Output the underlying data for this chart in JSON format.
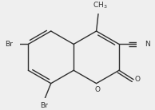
{
  "bg_color": "#efefef",
  "line_color": "#303030",
  "text_color": "#303030",
  "figsize": [
    1.94,
    1.38
  ],
  "dpi": 100,
  "lw": 1.0,
  "font_size": 6.5,
  "xlim": [
    -0.5,
    7.5
  ],
  "ylim": [
    -0.3,
    5.5
  ]
}
